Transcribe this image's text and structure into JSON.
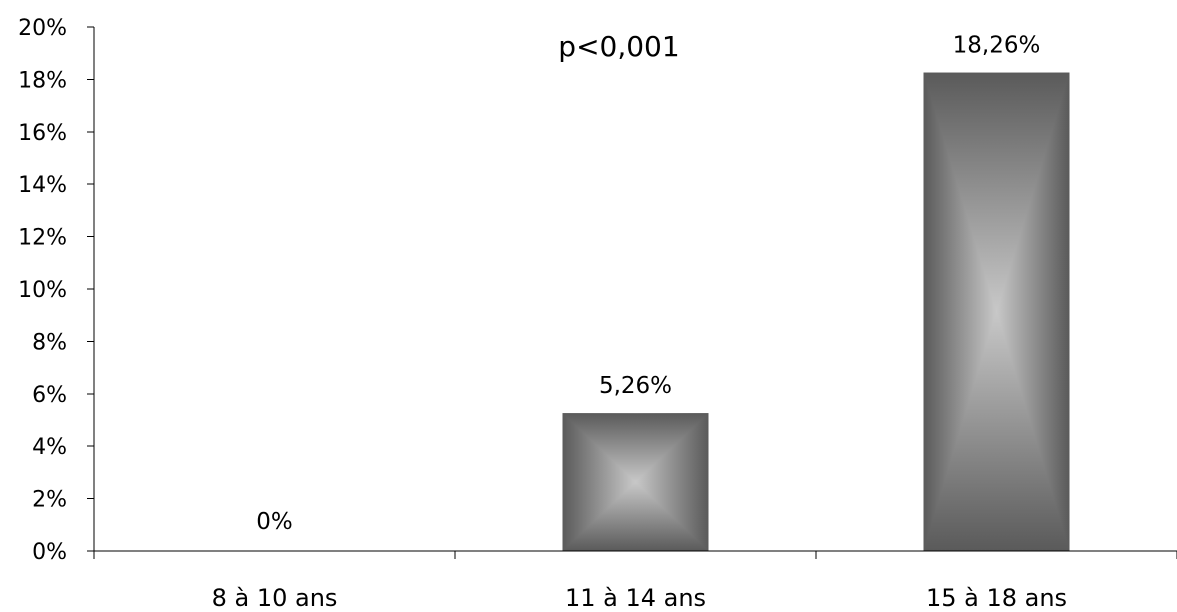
{
  "chart_data": {
    "type": "bar",
    "categories": [
      "8 à 10 ans",
      "11 à 14 ans",
      "15 à 18 ans"
    ],
    "values": [
      0,
      5.26,
      18.26
    ],
    "data_labels": [
      "0%",
      "5,26%",
      "18,26%"
    ],
    "ylim": [
      0,
      20
    ],
    "y_ticks": [
      0,
      2,
      4,
      6,
      8,
      10,
      12,
      14,
      16,
      18,
      20
    ],
    "y_tick_labels": [
      "0%",
      "2%",
      "4%",
      "6%",
      "8%",
      "10%",
      "12%",
      "14%",
      "16%",
      "18%",
      "20%"
    ],
    "annotation": "p<0,001",
    "grid": false,
    "legend": "none",
    "bar_colors": {
      "edge": "#5a5a5a",
      "center": "#c8c8c8"
    }
  }
}
